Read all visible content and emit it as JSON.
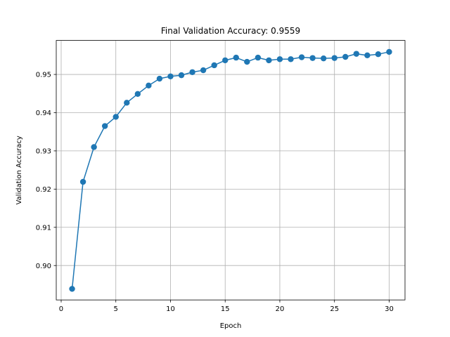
{
  "chart_data": {
    "type": "line",
    "title": "Final Validation Accuracy: 0.9559",
    "xlabel": "Epoch",
    "ylabel": "Validation Accuracy",
    "xlim": [
      -0.45,
      31.45
    ],
    "ylim": [
      0.891,
      0.9589
    ],
    "xticks": [
      0,
      5,
      10,
      15,
      20,
      25,
      30
    ],
    "xtick_labels": [
      "0",
      "5",
      "10",
      "15",
      "20",
      "25",
      "30"
    ],
    "yticks": [
      0.9,
      0.91,
      0.92,
      0.93,
      0.94,
      0.95
    ],
    "ytick_labels": [
      "0.90",
      "0.91",
      "0.92",
      "0.93",
      "0.94",
      "0.95"
    ],
    "grid": true,
    "marker": "circle",
    "color": "#1f77b4",
    "series": [
      {
        "x": [
          1,
          2,
          3,
          4,
          5,
          6,
          7,
          8,
          9,
          10,
          11,
          12,
          13,
          14,
          15,
          16,
          17,
          18,
          19,
          20,
          21,
          22,
          23,
          24,
          25,
          26,
          27,
          28,
          29,
          30
        ],
        "values": [
          0.8939,
          0.9219,
          0.931,
          0.9365,
          0.9389,
          0.9426,
          0.9449,
          0.9471,
          0.9489,
          0.9495,
          0.9498,
          0.9506,
          0.9511,
          0.9524,
          0.9537,
          0.9544,
          0.9533,
          0.9544,
          0.9537,
          0.954,
          0.954,
          0.9545,
          0.9543,
          0.9542,
          0.9543,
          0.9546,
          0.9554,
          0.955,
          0.9553,
          0.9559
        ]
      }
    ]
  }
}
